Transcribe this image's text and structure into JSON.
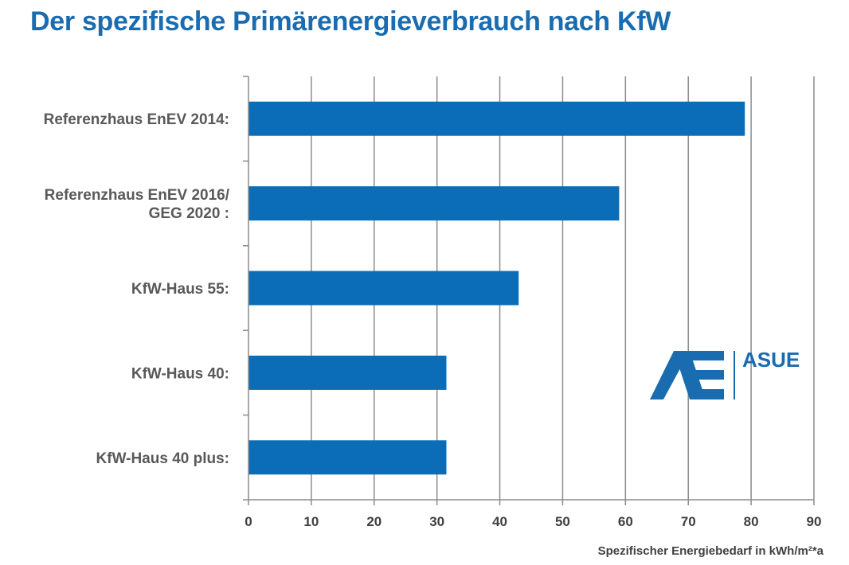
{
  "title": "Der spezifische Primärenergieverbrauch nach KfW",
  "logo": {
    "text": "ASUE",
    "color": "#1a6cb0"
  },
  "chart_data": {
    "type": "bar",
    "orientation": "horizontal",
    "categories": [
      [
        "Referenzhaus EnEV 2014:"
      ],
      [
        "Referenzhaus EnEV 2016/",
        "GEG 2020 :"
      ],
      [
        "KfW-Haus 55:"
      ],
      [
        "KfW-Haus 40:"
      ],
      [
        "KfW-Haus 40 plus:"
      ]
    ],
    "values": [
      79,
      59,
      43,
      31.5,
      31.5
    ],
    "xlim": [
      0,
      90
    ],
    "xticks": [
      0,
      10,
      20,
      30,
      40,
      50,
      60,
      70,
      80,
      90
    ],
    "xlabel": "Spezifischer Energiebedarf in kWh/m²*a",
    "grid": "vertical",
    "bar_color": "#0b6db7"
  }
}
